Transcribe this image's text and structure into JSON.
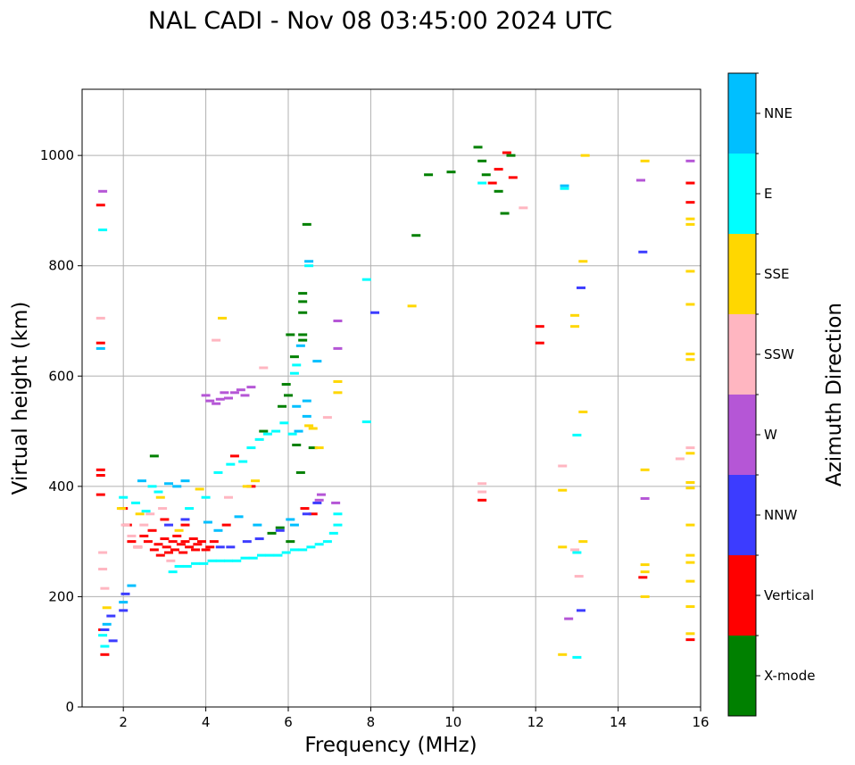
{
  "chart_data": {
    "type": "scatter",
    "title": "NAL CADI - Nov 08 03:45:00 2024 UTC",
    "xlabel": "Frequency (MHz)",
    "ylabel": "Virtual height (km)",
    "xlim": [
      1,
      16
    ],
    "ylim": [
      0,
      1120
    ],
    "xticks": [
      2,
      4,
      6,
      8,
      10,
      12,
      14,
      16
    ],
    "yticks": [
      0,
      200,
      400,
      600,
      800,
      1000
    ],
    "grid": true,
    "colorbar": {
      "label": "Azimuth Direction",
      "categories": [
        "X-mode",
        "Vertical",
        "NNW",
        "W",
        "SSW",
        "SSE",
        "E",
        "NNE"
      ],
      "colors": [
        "#008000",
        "#ff0000",
        "#3c3cff",
        "#b556d6",
        "#ffb6c1",
        "#ffd700",
        "#00ffff",
        "#00bfff"
      ]
    },
    "series": [
      {
        "name": "Vertical",
        "points": [
          [
            1.45,
            910
          ],
          [
            1.45,
            660
          ],
          [
            1.45,
            430
          ],
          [
            1.45,
            420
          ],
          [
            1.45,
            385
          ],
          [
            1.5,
            140
          ],
          [
            1.55,
            95
          ],
          [
            2.0,
            360
          ],
          [
            2.1,
            330
          ],
          [
            2.2,
            300
          ],
          [
            2.35,
            290
          ],
          [
            2.5,
            310
          ],
          [
            2.6,
            300
          ],
          [
            2.7,
            320
          ],
          [
            2.75,
            285
          ],
          [
            2.85,
            295
          ],
          [
            2.9,
            275
          ],
          [
            3.0,
            305
          ],
          [
            3.05,
            290
          ],
          [
            3.1,
            280
          ],
          [
            3.2,
            300
          ],
          [
            3.25,
            285
          ],
          [
            3.3,
            310
          ],
          [
            3.4,
            295
          ],
          [
            3.45,
            280
          ],
          [
            3.5,
            300
          ],
          [
            3.6,
            290
          ],
          [
            3.7,
            305
          ],
          [
            3.75,
            285
          ],
          [
            3.8,
            295
          ],
          [
            3.9,
            300
          ],
          [
            4.0,
            285
          ],
          [
            4.1,
            290
          ],
          [
            4.2,
            300
          ],
          [
            3.0,
            340
          ],
          [
            3.5,
            330
          ],
          [
            4.5,
            330
          ],
          [
            4.7,
            455
          ],
          [
            5.1,
            400
          ],
          [
            6.4,
            360
          ],
          [
            6.6,
            350
          ],
          [
            10.7,
            375
          ],
          [
            10.95,
            950
          ],
          [
            11.1,
            975
          ],
          [
            11.3,
            1005
          ],
          [
            11.45,
            960
          ],
          [
            12.1,
            690
          ],
          [
            12.1,
            660
          ],
          [
            14.6,
            235
          ],
          [
            15.75,
            950
          ],
          [
            15.75,
            915
          ],
          [
            15.75,
            122
          ]
        ]
      },
      {
        "name": "X-mode",
        "points": [
          [
            2.75,
            455
          ],
          [
            5.6,
            315
          ],
          [
            5.8,
            325
          ],
          [
            6.05,
            300
          ],
          [
            6.3,
            425
          ],
          [
            6.35,
            750
          ],
          [
            6.35,
            735
          ],
          [
            6.35,
            715
          ],
          [
            6.35,
            675
          ],
          [
            6.35,
            665
          ],
          [
            6.45,
            875
          ],
          [
            6.05,
            675
          ],
          [
            6.15,
            635
          ],
          [
            5.95,
            585
          ],
          [
            6.0,
            565
          ],
          [
            6.2,
            475
          ],
          [
            6.6,
            470
          ],
          [
            9.1,
            855
          ],
          [
            9.4,
            965
          ],
          [
            9.95,
            970
          ],
          [
            10.6,
            1015
          ],
          [
            10.7,
            990
          ],
          [
            11.1,
            935
          ],
          [
            11.25,
            895
          ],
          [
            11.4,
            1000
          ],
          [
            10.8,
            965
          ],
          [
            5.85,
            545
          ],
          [
            5.4,
            500
          ]
        ]
      },
      {
        "name": "NNW",
        "points": [
          [
            1.55,
            140
          ],
          [
            1.7,
            165
          ],
          [
            1.75,
            120
          ],
          [
            2.0,
            175
          ],
          [
            2.05,
            205
          ],
          [
            3.1,
            330
          ],
          [
            3.5,
            340
          ],
          [
            4.35,
            290
          ],
          [
            4.6,
            290
          ],
          [
            5.0,
            300
          ],
          [
            5.3,
            305
          ],
          [
            5.8,
            320
          ],
          [
            6.45,
            350
          ],
          [
            6.7,
            370
          ],
          [
            8.1,
            715
          ],
          [
            13.1,
            760
          ],
          [
            13.1,
            175
          ],
          [
            14.6,
            825
          ]
        ]
      },
      {
        "name": "W",
        "points": [
          [
            4.0,
            565
          ],
          [
            4.1,
            555
          ],
          [
            4.25,
            550
          ],
          [
            4.35,
            558
          ],
          [
            4.45,
            570
          ],
          [
            4.55,
            560
          ],
          [
            4.7,
            570
          ],
          [
            4.85,
            575
          ],
          [
            4.95,
            565
          ],
          [
            5.1,
            580
          ],
          [
            6.75,
            375
          ],
          [
            6.8,
            385
          ],
          [
            7.15,
            370
          ],
          [
            7.2,
            650
          ],
          [
            7.2,
            700
          ],
          [
            12.8,
            160
          ],
          [
            14.55,
            955
          ],
          [
            14.65,
            378
          ],
          [
            15.75,
            990
          ],
          [
            1.5,
            935
          ]
        ]
      },
      {
        "name": "SSW",
        "points": [
          [
            1.45,
            705
          ],
          [
            1.5,
            280
          ],
          [
            1.5,
            250
          ],
          [
            1.55,
            215
          ],
          [
            2.05,
            330
          ],
          [
            2.2,
            310
          ],
          [
            2.35,
            290
          ],
          [
            2.5,
            330
          ],
          [
            2.65,
            350
          ],
          [
            2.95,
            360
          ],
          [
            3.15,
            265
          ],
          [
            4.25,
            665
          ],
          [
            4.55,
            380
          ],
          [
            5.4,
            615
          ],
          [
            6.95,
            525
          ],
          [
            10.7,
            390
          ],
          [
            10.7,
            405
          ],
          [
            11.7,
            905
          ],
          [
            12.65,
            437
          ],
          [
            13.05,
            237
          ],
          [
            12.95,
            285
          ],
          [
            15.75,
            470
          ],
          [
            15.5,
            450
          ]
        ]
      },
      {
        "name": "SSE",
        "points": [
          [
            1.6,
            180
          ],
          [
            1.95,
            360
          ],
          [
            2.4,
            350
          ],
          [
            2.9,
            380
          ],
          [
            3.35,
            320
          ],
          [
            3.85,
            395
          ],
          [
            4.4,
            705
          ],
          [
            5.0,
            400
          ],
          [
            5.2,
            410
          ],
          [
            6.5,
            510
          ],
          [
            6.6,
            505
          ],
          [
            6.75,
            470
          ],
          [
            7.2,
            570
          ],
          [
            7.2,
            590
          ],
          [
            9.0,
            727
          ],
          [
            12.65,
            95
          ],
          [
            12.65,
            290
          ],
          [
            12.65,
            393
          ],
          [
            12.95,
            710
          ],
          [
            12.95,
            690
          ],
          [
            13.15,
            808
          ],
          [
            13.15,
            535
          ],
          [
            13.15,
            300
          ],
          [
            13.2,
            1000
          ],
          [
            14.65,
            430
          ],
          [
            14.65,
            258
          ],
          [
            14.65,
            245
          ],
          [
            14.65,
            200
          ],
          [
            14.65,
            990
          ],
          [
            15.75,
            885
          ],
          [
            15.75,
            875
          ],
          [
            15.75,
            790
          ],
          [
            15.75,
            730
          ],
          [
            15.75,
            640
          ],
          [
            15.75,
            630
          ],
          [
            15.75,
            460
          ],
          [
            15.75,
            407
          ],
          [
            15.75,
            397
          ],
          [
            15.75,
            330
          ],
          [
            15.75,
            275
          ],
          [
            15.75,
            262
          ],
          [
            15.75,
            228
          ],
          [
            15.75,
            182
          ],
          [
            15.75,
            133
          ]
        ]
      },
      {
        "name": "E",
        "points": [
          [
            1.5,
            865
          ],
          [
            1.5,
            130
          ],
          [
            1.55,
            110
          ],
          [
            2.0,
            380
          ],
          [
            2.3,
            370
          ],
          [
            2.55,
            355
          ],
          [
            2.7,
            400
          ],
          [
            2.85,
            390
          ],
          [
            3.2,
            245
          ],
          [
            3.35,
            255
          ],
          [
            3.55,
            255
          ],
          [
            3.75,
            260
          ],
          [
            3.95,
            260
          ],
          [
            4.15,
            265
          ],
          [
            4.35,
            265
          ],
          [
            4.55,
            265
          ],
          [
            4.75,
            265
          ],
          [
            4.95,
            270
          ],
          [
            5.15,
            270
          ],
          [
            5.35,
            275
          ],
          [
            5.55,
            275
          ],
          [
            5.75,
            275
          ],
          [
            5.95,
            280
          ],
          [
            6.15,
            285
          ],
          [
            6.35,
            285
          ],
          [
            6.55,
            290
          ],
          [
            6.75,
            295
          ],
          [
            6.95,
            300
          ],
          [
            7.1,
            315
          ],
          [
            7.2,
            330
          ],
          [
            7.2,
            350
          ],
          [
            3.6,
            360
          ],
          [
            4.0,
            380
          ],
          [
            4.3,
            425
          ],
          [
            4.6,
            440
          ],
          [
            4.9,
            445
          ],
          [
            5.1,
            470
          ],
          [
            5.3,
            485
          ],
          [
            5.5,
            495
          ],
          [
            5.7,
            500
          ],
          [
            5.9,
            515
          ],
          [
            6.1,
            495
          ],
          [
            7.9,
            775
          ],
          [
            7.9,
            517
          ],
          [
            10.7,
            950
          ],
          [
            12.7,
            940
          ],
          [
            13.0,
            90
          ],
          [
            13.0,
            280
          ],
          [
            13.0,
            493
          ],
          [
            6.15,
            605
          ],
          [
            6.2,
            620
          ],
          [
            6.5,
            800
          ]
        ]
      },
      {
        "name": "NNE",
        "points": [
          [
            1.45,
            650
          ],
          [
            1.6,
            150
          ],
          [
            2.0,
            190
          ],
          [
            2.2,
            220
          ],
          [
            2.45,
            410
          ],
          [
            3.1,
            405
          ],
          [
            3.3,
            400
          ],
          [
            3.5,
            410
          ],
          [
            4.05,
            335
          ],
          [
            4.3,
            320
          ],
          [
            4.8,
            345
          ],
          [
            5.25,
            330
          ],
          [
            6.05,
            340
          ],
          [
            6.15,
            330
          ],
          [
            6.25,
            500
          ],
          [
            6.2,
            545
          ],
          [
            6.45,
            555
          ],
          [
            6.45,
            527
          ],
          [
            6.5,
            808
          ],
          [
            12.7,
            945
          ],
          [
            6.7,
            627
          ],
          [
            6.3,
            655
          ]
        ]
      }
    ]
  }
}
